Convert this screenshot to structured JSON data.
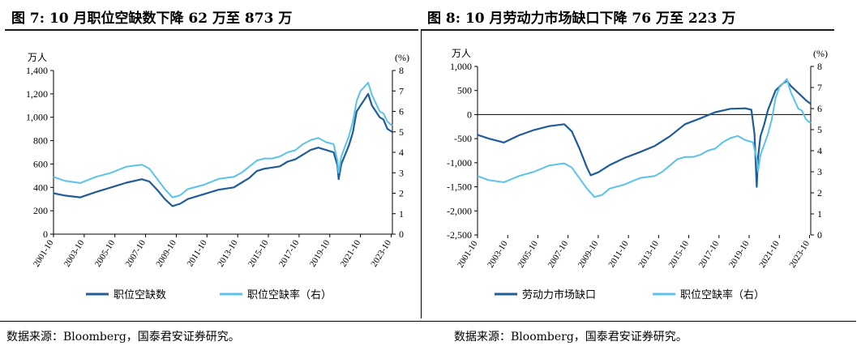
{
  "sources": {
    "left": "数据来源：Bloomberg，国泰君安证券研究。",
    "right": "数据来源：Bloomberg，国泰君安证券研究。"
  },
  "colors": {
    "dark": "#1F5C99",
    "light": "#5BC3EA",
    "axis": "#000000"
  },
  "chart_data": [
    {
      "type": "line",
      "title": "图 7: 10 月职位空缺数下降 62 万至 873 万",
      "left_unit": "万人",
      "right_unit": "(%)",
      "ylim_left": [
        0,
        1400
      ],
      "yticks_left": [
        0,
        200,
        400,
        600,
        800,
        1000,
        1200,
        1400
      ],
      "ytick_labels_left": [
        "0",
        "200",
        "400",
        "600",
        "800",
        "1,000",
        "1,200",
        "1,400"
      ],
      "ylim_right": [
        0,
        8
      ],
      "yticks_right": [
        0,
        1,
        2,
        3,
        4,
        5,
        6,
        7,
        8
      ],
      "xlim": [
        2001.75,
        2023.83
      ],
      "xticks": [
        2001.75,
        2003.75,
        2005.75,
        2007.75,
        2009.75,
        2011.75,
        2013.75,
        2015.75,
        2017.75,
        2019.75,
        2021.75,
        2023.75
      ],
      "xtick_labels": [
        "2001-10",
        "2003-10",
        "2005-10",
        "2007-10",
        "2009-10",
        "2011-10",
        "2013-10",
        "2015-10",
        "2017-10",
        "2019-10",
        "2021-10",
        "2023-10"
      ],
      "zero_line": false,
      "series": [
        {
          "name": "职位空缺数",
          "axis": "left",
          "color": "#1F5C99",
          "x": [
            2001.75,
            2002.5,
            2003.5,
            2004.5,
            2005.5,
            2006.5,
            2007.5,
            2008.0,
            2008.5,
            2009.0,
            2009.5,
            2010.0,
            2010.5,
            2011.5,
            2012.5,
            2013.5,
            2014.0,
            2014.5,
            2015.0,
            2015.5,
            2016.0,
            2016.5,
            2017.0,
            2017.5,
            2018.0,
            2018.5,
            2019.0,
            2019.5,
            2020.0,
            2020.25,
            2020.33,
            2020.5,
            2020.75,
            2021.0,
            2021.25,
            2021.5,
            2021.75,
            2022.0,
            2022.25,
            2022.5,
            2022.75,
            2023.0,
            2023.25,
            2023.5,
            2023.83
          ],
          "values": [
            350,
            330,
            315,
            360,
            400,
            440,
            470,
            450,
            380,
            300,
            240,
            260,
            300,
            340,
            380,
            400,
            440,
            480,
            540,
            560,
            570,
            580,
            620,
            640,
            680,
            720,
            740,
            720,
            700,
            590,
            470,
            600,
            680,
            760,
            870,
            1050,
            1100,
            1150,
            1200,
            1100,
            1050,
            1000,
            980,
            900,
            873
          ]
        },
        {
          "name": "职位空缺率（右）",
          "axis": "right",
          "color": "#5BC3EA",
          "x": [
            2001.75,
            2002.5,
            2003.5,
            2004.5,
            2005.5,
            2006.5,
            2007.5,
            2008.0,
            2008.5,
            2009.0,
            2009.5,
            2010.0,
            2010.5,
            2011.5,
            2012.5,
            2013.5,
            2014.0,
            2014.5,
            2015.0,
            2015.5,
            2016.0,
            2016.5,
            2017.0,
            2017.5,
            2018.0,
            2018.5,
            2019.0,
            2019.5,
            2020.0,
            2020.25,
            2020.33,
            2020.5,
            2020.75,
            2021.0,
            2021.25,
            2021.5,
            2021.75,
            2022.0,
            2022.25,
            2022.5,
            2022.75,
            2023.0,
            2023.25,
            2023.5,
            2023.83
          ],
          "values": [
            2.8,
            2.6,
            2.5,
            2.8,
            3.0,
            3.3,
            3.4,
            3.2,
            2.7,
            2.2,
            1.8,
            1.9,
            2.2,
            2.4,
            2.7,
            2.8,
            3.0,
            3.3,
            3.6,
            3.7,
            3.7,
            3.8,
            4.0,
            4.1,
            4.4,
            4.6,
            4.7,
            4.5,
            4.4,
            3.6,
            3.0,
            3.8,
            4.3,
            4.8,
            5.5,
            6.5,
            7.0,
            7.2,
            7.4,
            6.8,
            6.4,
            6.0,
            5.9,
            5.5,
            5.3
          ]
        }
      ]
    },
    {
      "type": "line",
      "title": "图 8:  10 月劳动力市场缺口下降 76 万至 223 万",
      "left_unit": "万人",
      "right_unit": "(%)",
      "ylim_left": [
        -2500,
        1000
      ],
      "yticks_left": [
        -2500,
        -2000,
        -1500,
        -1000,
        -500,
        0,
        500,
        1000
      ],
      "ytick_labels_left": [
        "-2,500",
        "-2,000",
        "-1,500",
        "-1,000",
        "-500",
        "0",
        "500",
        "1,000"
      ],
      "ylim_right": [
        0,
        8
      ],
      "yticks_right": [
        0,
        1,
        2,
        3,
        4,
        5,
        6,
        7,
        8
      ],
      "xlim": [
        2001.75,
        2023.83
      ],
      "xticks": [
        2001.75,
        2003.75,
        2005.75,
        2007.75,
        2009.75,
        2011.75,
        2013.75,
        2015.75,
        2017.75,
        2019.75,
        2021.75,
        2023.75
      ],
      "xtick_labels": [
        "2001-10",
        "2003-10",
        "2005-10",
        "2007-10",
        "2009-10",
        "2011-10",
        "2013-10",
        "2015-10",
        "2017-10",
        "2019-10",
        "2021-10",
        "2023-10"
      ],
      "zero_line": true,
      "series": [
        {
          "name": "劳动力市场缺口",
          "axis": "left",
          "color": "#1F5C99",
          "x": [
            2001.75,
            2002.5,
            2003.5,
            2004.5,
            2005.5,
            2006.5,
            2007.5,
            2008.0,
            2008.5,
            2009.0,
            2009.25,
            2009.75,
            2010.5,
            2011.5,
            2012.5,
            2013.5,
            2014.5,
            2015.5,
            2016.5,
            2017.5,
            2018.5,
            2019.5,
            2019.9,
            2020.1,
            2020.25,
            2020.33,
            2020.5,
            2020.75,
            2021.0,
            2021.5,
            2022.0,
            2022.25,
            2022.5,
            2023.0,
            2023.5,
            2023.83
          ],
          "values": [
            -420,
            -500,
            -580,
            -430,
            -320,
            -240,
            -200,
            -350,
            -700,
            -1100,
            -1260,
            -1200,
            -1050,
            -900,
            -780,
            -650,
            -450,
            -200,
            -80,
            50,
            120,
            130,
            100,
            -400,
            -1500,
            -900,
            -450,
            -200,
            100,
            500,
            650,
            700,
            600,
            450,
            300,
            223
          ]
        },
        {
          "name": "职位空缺率（右）",
          "axis": "right",
          "color": "#5BC3EA",
          "x": [
            2001.75,
            2002.5,
            2003.5,
            2004.5,
            2005.5,
            2006.5,
            2007.5,
            2008.0,
            2008.5,
            2009.0,
            2009.5,
            2010.0,
            2010.5,
            2011.5,
            2012.5,
            2013.5,
            2014.0,
            2014.5,
            2015.0,
            2015.5,
            2016.0,
            2016.5,
            2017.0,
            2017.5,
            2018.0,
            2018.5,
            2019.0,
            2019.5,
            2020.0,
            2020.25,
            2020.33,
            2020.5,
            2020.75,
            2021.0,
            2021.25,
            2021.5,
            2021.75,
            2022.0,
            2022.25,
            2022.5,
            2022.75,
            2023.0,
            2023.25,
            2023.5,
            2023.83
          ],
          "values": [
            2.8,
            2.6,
            2.5,
            2.8,
            3.0,
            3.3,
            3.4,
            3.2,
            2.7,
            2.2,
            1.8,
            1.9,
            2.2,
            2.4,
            2.7,
            2.8,
            3.0,
            3.3,
            3.6,
            3.7,
            3.7,
            3.8,
            4.0,
            4.1,
            4.4,
            4.6,
            4.7,
            4.5,
            4.4,
            3.6,
            3.0,
            3.8,
            4.3,
            4.8,
            5.5,
            6.5,
            7.0,
            7.2,
            7.4,
            6.8,
            6.4,
            6.0,
            5.9,
            5.5,
            5.3
          ]
        }
      ]
    }
  ]
}
